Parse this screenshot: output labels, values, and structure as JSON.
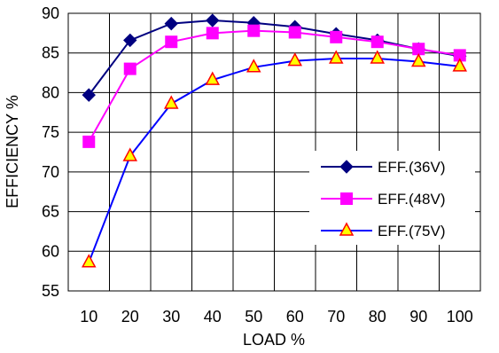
{
  "chart_data": {
    "type": "line",
    "title": "",
    "xlabel": "LOAD %",
    "ylabel": "EFFICIENCY %",
    "categories": [
      "10",
      "20",
      "30",
      "40",
      "50",
      "60",
      "70",
      "80",
      "90",
      "100"
    ],
    "ylim": [
      55,
      90
    ],
    "yticks": [
      "90",
      "85",
      "80",
      "75",
      "70",
      "65",
      "60",
      "55"
    ],
    "grid": true,
    "legend_position": "right",
    "series": [
      {
        "name": "EFF.(36V)",
        "color": "#000080",
        "marker": "diamond",
        "values": [
          79.7,
          86.6,
          88.7,
          89.1,
          88.8,
          88.3,
          87.4,
          86.6,
          85.5,
          84.6
        ]
      },
      {
        "name": "EFF.(48V)",
        "color": "#ff00ff",
        "marker": "square",
        "values": [
          73.8,
          83.0,
          86.4,
          87.5,
          87.8,
          87.6,
          87.0,
          86.4,
          85.5,
          84.7
        ]
      },
      {
        "name": "EFF.(75V)",
        "color": "#0000ff",
        "marker": "triangle",
        "marker_fill": "#ffff00",
        "marker_stroke": "#ff0000",
        "values": [
          58.6,
          72.0,
          78.6,
          81.6,
          83.2,
          84.0,
          84.3,
          84.3,
          83.9,
          83.3
        ]
      }
    ]
  }
}
